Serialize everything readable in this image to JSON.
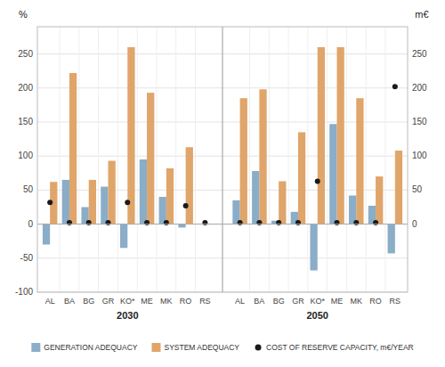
{
  "chart_data": {
    "type": "bar",
    "categories": [
      "AL",
      "BA",
      "BG",
      "GR",
      "KO*",
      "ME",
      "MK",
      "RO",
      "RS",
      "AL",
      "BA",
      "BG",
      "GR",
      "KO*",
      "ME",
      "MK",
      "RO",
      "RS"
    ],
    "annotations": [
      "2030",
      "2050"
    ],
    "series": [
      {
        "name": "GENERATION ADEQUACY",
        "color": "#8aadc8",
        "values": [
          -30,
          65,
          25,
          55,
          -35,
          95,
          40,
          -5,
          0,
          35,
          78,
          5,
          18,
          -68,
          147,
          42,
          27,
          -43
        ]
      },
      {
        "name": "SYSTEM ADEQUACY",
        "color": "#e0a56a",
        "values": [
          62,
          222,
          65,
          93,
          260,
          193,
          82,
          113,
          0,
          185,
          198,
          63,
          135,
          260,
          260,
          185,
          70,
          108
        ]
      },
      {
        "name": "COST OF RESERVE CAPACITY, m€/YEAR",
        "type": "scatter",
        "axis": "y2",
        "color": "#1a1a1a",
        "marker": "circle",
        "values": [
          32,
          2,
          2,
          2,
          32,
          2,
          2,
          27,
          2,
          2,
          2,
          2,
          2,
          63,
          2,
          2,
          2,
          202
        ]
      }
    ],
    "ylabel": "%",
    "y2label": "m€",
    "ylim": [
      -100,
      290
    ],
    "yticks": [
      -100,
      -50,
      0,
      50,
      100,
      150,
      200,
      250
    ],
    "y2lim": [
      -100,
      290
    ],
    "y2ticks": [
      0,
      50,
      100,
      150,
      200,
      250
    ],
    "grid": true,
    "legend": "bottom"
  }
}
